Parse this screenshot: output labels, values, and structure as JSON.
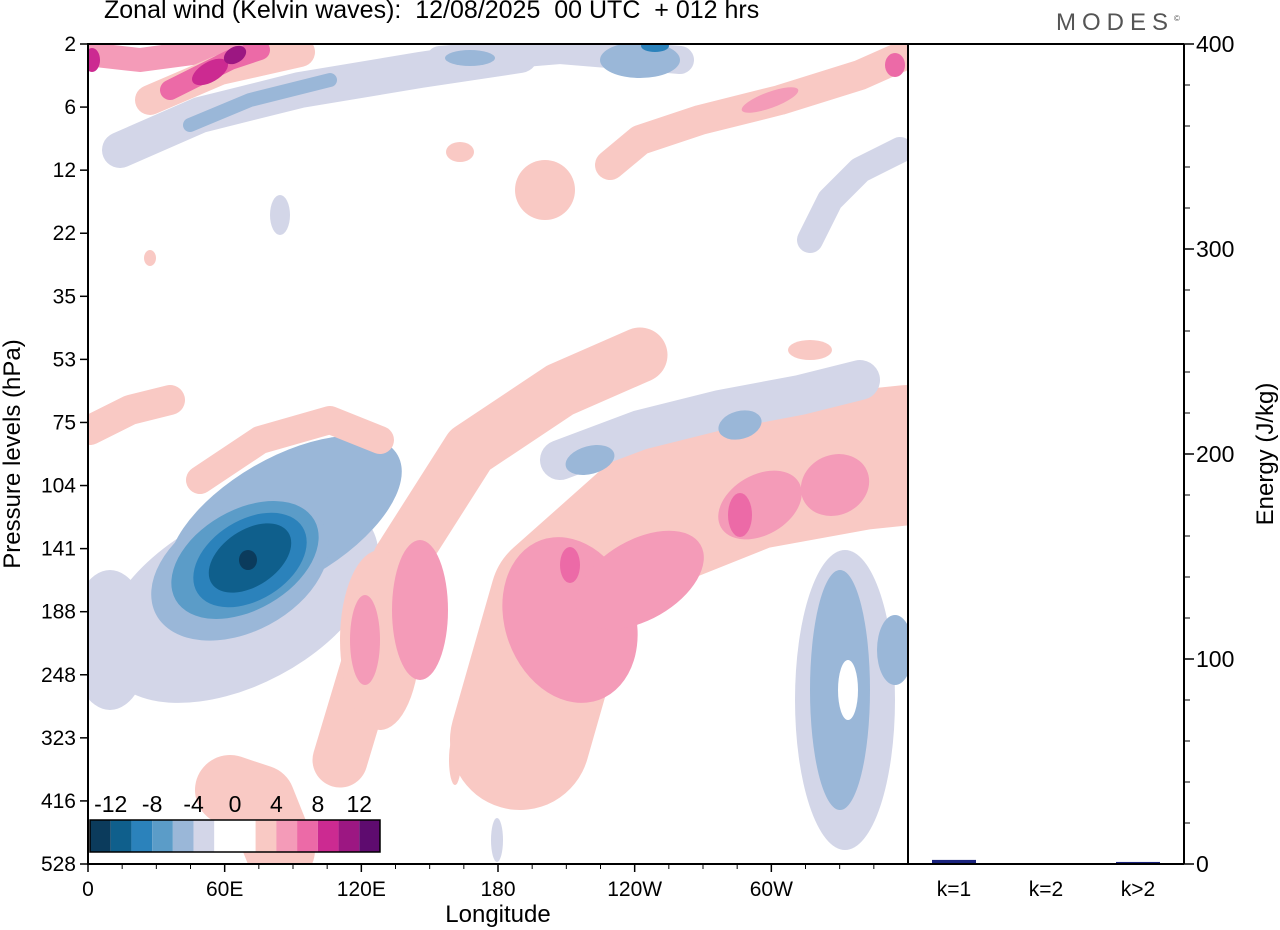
{
  "chart_data": [
    {
      "type": "heatmap",
      "title": "Zonal wind (Kelvin waves):  12/08/2025  00 UTC  + 012 hrs",
      "xlabel": "Longitude",
      "ylabel": "Pressure levels (hPa)",
      "x_ticks": [
        "0",
        "60E",
        "120E",
        "180",
        "120W",
        "60W"
      ],
      "y_ticks": [
        "2",
        "6",
        "12",
        "22",
        "35",
        "53",
        "75",
        "104",
        "141",
        "188",
        "248",
        "323",
        "416",
        "528"
      ],
      "colorbar": {
        "tick_labels": [
          "-12",
          "-8",
          "-4",
          "0",
          "4",
          "8",
          "12"
        ],
        "levels": [
          -14,
          -12,
          -10,
          -8,
          -6,
          -4,
          -2,
          0,
          2,
          4,
          6,
          8,
          10,
          12,
          14
        ],
        "colors": [
          "#0b3b5c",
          "#0f5f8c",
          "#2b82bb",
          "#5b9cc8",
          "#9ab7d8",
          "#d3d6e8",
          "#ffffff",
          "#ffffff",
          "#f9c9c4",
          "#f49bb8",
          "#ec6aa7",
          "#cc2a91",
          "#9c1782",
          "#5e0b6f"
        ]
      },
      "features": [
        {
          "sign": "negative",
          "lon": 70,
          "level": 141,
          "peak": -14
        },
        {
          "sign": "positive",
          "lon": 200,
          "level": 141,
          "peak": 9
        },
        {
          "sign": "positive",
          "lon": 292,
          "level": 120,
          "peak": 9
        },
        {
          "sign": "positive",
          "lon": 40,
          "level": 3,
          "peak": 12
        },
        {
          "sign": "negative",
          "lon": 350,
          "level": 248,
          "peak": -6
        },
        {
          "sign": "negative",
          "lon": 185,
          "level": 2,
          "peak": -7
        }
      ]
    },
    {
      "type": "bar",
      "categories": [
        "k=1",
        "k=2",
        "k>2"
      ],
      "values": [
        2,
        0.3,
        1
      ],
      "ylabel": "Energy (J/kg)",
      "ylim": [
        0,
        400
      ],
      "y_ticks": [
        0,
        100,
        200,
        300,
        400
      ],
      "bar_color": "#1a237e"
    }
  ],
  "brand": "MODES",
  "brand_mark": "©"
}
